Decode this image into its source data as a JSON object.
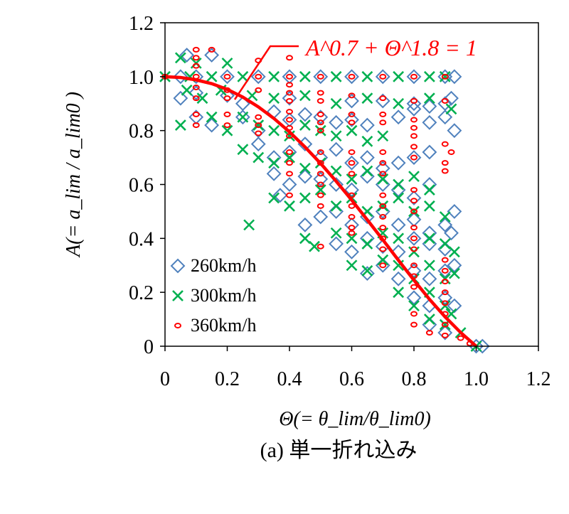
{
  "chart_data": {
    "type": "scatter",
    "title": "",
    "caption": "(a) 単一折れ込み",
    "xlabel": "Θ(= θ_lim/θ_lim0)",
    "ylabel": "A(= a_lim / a_lim0 )",
    "xlim": [
      0,
      1.2
    ],
    "ylim": [
      0,
      1.2
    ],
    "xticks": [
      "0",
      "0.2",
      "0.4",
      "0.6",
      "0.8",
      "1.0",
      "1.2"
    ],
    "yticks": [
      "0",
      "0.2",
      "0.4",
      "0.6",
      "0.8",
      "1.0",
      "1.2"
    ],
    "grid": false,
    "legend_position": "bottom-left",
    "annotation": {
      "text": "A^0.7 + Θ^1.8 = 1",
      "color": "#ff0000"
    },
    "curve": {
      "name": "A^0.7 + Θ^1.8 = 1",
      "color": "#ff0000",
      "x": [
        0,
        0.05,
        0.1,
        0.15,
        0.2,
        0.25,
        0.3,
        0.35,
        0.4,
        0.45,
        0.5,
        0.55,
        0.6,
        0.65,
        0.7,
        0.75,
        0.8,
        0.85,
        0.9,
        0.95,
        1.0
      ],
      "y": [
        1.0,
        0.997,
        0.988,
        0.974,
        0.953,
        0.924,
        0.888,
        0.845,
        0.795,
        0.739,
        0.678,
        0.612,
        0.542,
        0.469,
        0.395,
        0.319,
        0.245,
        0.174,
        0.109,
        0.051,
        0.0
      ]
    },
    "series": [
      {
        "name": "260km/h",
        "marker": "diamond",
        "color": "#4f81bd",
        "points": [
          [
            0.07,
            1.08
          ],
          [
            0.15,
            1.08
          ],
          [
            0.05,
            1.0
          ],
          [
            0.1,
            1.0
          ],
          [
            0.2,
            1.0
          ],
          [
            0.3,
            1.0
          ],
          [
            0.4,
            1.0
          ],
          [
            0.5,
            1.0
          ],
          [
            0.6,
            1.0
          ],
          [
            0.7,
            1.0
          ],
          [
            0.8,
            1.0
          ],
          [
            0.9,
            1.0
          ],
          [
            0.93,
            1.0
          ],
          [
            0.05,
            0.92
          ],
          [
            0.1,
            0.94
          ],
          [
            0.2,
            0.93
          ],
          [
            0.25,
            0.9
          ],
          [
            0.4,
            0.92
          ],
          [
            0.6,
            0.91
          ],
          [
            0.7,
            0.91
          ],
          [
            0.8,
            0.9
          ],
          [
            0.85,
            0.89
          ],
          [
            0.9,
            0.9
          ],
          [
            0.92,
            0.92
          ],
          [
            0.1,
            0.85
          ],
          [
            0.15,
            0.82
          ],
          [
            0.25,
            0.85
          ],
          [
            0.3,
            0.8
          ],
          [
            0.35,
            0.87
          ],
          [
            0.4,
            0.84
          ],
          [
            0.45,
            0.86
          ],
          [
            0.5,
            0.85
          ],
          [
            0.55,
            0.83
          ],
          [
            0.6,
            0.84
          ],
          [
            0.65,
            0.82
          ],
          [
            0.75,
            0.85
          ],
          [
            0.8,
            0.88
          ],
          [
            0.85,
            0.83
          ],
          [
            0.9,
            0.85
          ],
          [
            0.93,
            0.8
          ],
          [
            0.3,
            0.75
          ],
          [
            0.35,
            0.7
          ],
          [
            0.4,
            0.72
          ],
          [
            0.45,
            0.75
          ],
          [
            0.5,
            0.7
          ],
          [
            0.55,
            0.73
          ],
          [
            0.6,
            0.68
          ],
          [
            0.65,
            0.7
          ],
          [
            0.7,
            0.66
          ],
          [
            0.75,
            0.68
          ],
          [
            0.8,
            0.7
          ],
          [
            0.85,
            0.72
          ],
          [
            0.35,
            0.64
          ],
          [
            0.4,
            0.6
          ],
          [
            0.45,
            0.63
          ],
          [
            0.5,
            0.62
          ],
          [
            0.55,
            0.6
          ],
          [
            0.6,
            0.58
          ],
          [
            0.65,
            0.63
          ],
          [
            0.7,
            0.6
          ],
          [
            0.75,
            0.58
          ],
          [
            0.8,
            0.55
          ],
          [
            0.85,
            0.6
          ],
          [
            0.37,
            0.56
          ],
          [
            0.45,
            0.45
          ],
          [
            0.5,
            0.48
          ],
          [
            0.55,
            0.5
          ],
          [
            0.6,
            0.45
          ],
          [
            0.65,
            0.48
          ],
          [
            0.7,
            0.5
          ],
          [
            0.75,
            0.45
          ],
          [
            0.8,
            0.47
          ],
          [
            0.85,
            0.42
          ],
          [
            0.9,
            0.45
          ],
          [
            0.55,
            0.38
          ],
          [
            0.6,
            0.35
          ],
          [
            0.65,
            0.4
          ],
          [
            0.7,
            0.37
          ],
          [
            0.75,
            0.35
          ],
          [
            0.8,
            0.4
          ],
          [
            0.85,
            0.38
          ],
          [
            0.9,
            0.36
          ],
          [
            0.92,
            0.42
          ],
          [
            0.93,
            0.5
          ],
          [
            0.65,
            0.27
          ],
          [
            0.7,
            0.3
          ],
          [
            0.75,
            0.25
          ],
          [
            0.8,
            0.28
          ],
          [
            0.85,
            0.25
          ],
          [
            0.9,
            0.28
          ],
          [
            0.93,
            0.3
          ],
          [
            0.8,
            0.18
          ],
          [
            0.85,
            0.15
          ],
          [
            0.9,
            0.18
          ],
          [
            0.93,
            0.15
          ],
          [
            0.85,
            0.08
          ],
          [
            0.9,
            0.05
          ],
          [
            1.0,
            0.0
          ],
          [
            1.02,
            0.0
          ]
        ]
      },
      {
        "name": "300km/h",
        "marker": "x",
        "color": "#00b050",
        "points": [
          [
            0.05,
            1.07
          ],
          [
            0.1,
            1.05
          ],
          [
            0.2,
            1.05
          ],
          [
            0.0,
            1.0
          ],
          [
            0.08,
            1.0
          ],
          [
            0.15,
            1.0
          ],
          [
            0.25,
            1.0
          ],
          [
            0.35,
            1.0
          ],
          [
            0.45,
            1.0
          ],
          [
            0.55,
            1.0
          ],
          [
            0.65,
            1.0
          ],
          [
            0.75,
            1.0
          ],
          [
            0.85,
            1.0
          ],
          [
            0.9,
            1.0
          ],
          [
            0.07,
            0.95
          ],
          [
            0.12,
            0.92
          ],
          [
            0.18,
            0.95
          ],
          [
            0.28,
            0.93
          ],
          [
            0.35,
            0.92
          ],
          [
            0.45,
            0.93
          ],
          [
            0.55,
            0.9
          ],
          [
            0.65,
            0.92
          ],
          [
            0.75,
            0.9
          ],
          [
            0.85,
            0.92
          ],
          [
            0.92,
            0.88
          ],
          [
            0.05,
            0.82
          ],
          [
            0.15,
            0.85
          ],
          [
            0.2,
            0.8
          ],
          [
            0.25,
            0.85
          ],
          [
            0.3,
            0.82
          ],
          [
            0.35,
            0.8
          ],
          [
            0.4,
            0.78
          ],
          [
            0.45,
            0.82
          ],
          [
            0.5,
            0.8
          ],
          [
            0.55,
            0.78
          ],
          [
            0.6,
            0.8
          ],
          [
            0.65,
            0.76
          ],
          [
            0.7,
            0.78
          ],
          [
            0.25,
            0.73
          ],
          [
            0.3,
            0.7
          ],
          [
            0.35,
            0.68
          ],
          [
            0.4,
            0.7
          ],
          [
            0.45,
            0.66
          ],
          [
            0.5,
            0.68
          ],
          [
            0.55,
            0.65
          ],
          [
            0.6,
            0.62
          ],
          [
            0.65,
            0.65
          ],
          [
            0.7,
            0.62
          ],
          [
            0.75,
            0.6
          ],
          [
            0.8,
            0.63
          ],
          [
            0.85,
            0.58
          ],
          [
            0.35,
            0.55
          ],
          [
            0.4,
            0.52
          ],
          [
            0.45,
            0.55
          ],
          [
            0.5,
            0.58
          ],
          [
            0.55,
            0.52
          ],
          [
            0.6,
            0.55
          ],
          [
            0.65,
            0.5
          ],
          [
            0.7,
            0.52
          ],
          [
            0.75,
            0.55
          ],
          [
            0.8,
            0.5
          ],
          [
            0.85,
            0.52
          ],
          [
            0.9,
            0.48
          ],
          [
            0.27,
            0.45
          ],
          [
            0.45,
            0.4
          ],
          [
            0.48,
            0.37
          ],
          [
            0.55,
            0.42
          ],
          [
            0.6,
            0.4
          ],
          [
            0.65,
            0.38
          ],
          [
            0.7,
            0.42
          ],
          [
            0.75,
            0.4
          ],
          [
            0.8,
            0.35
          ],
          [
            0.85,
            0.4
          ],
          [
            0.9,
            0.38
          ],
          [
            0.93,
            0.35
          ],
          [
            0.6,
            0.3
          ],
          [
            0.65,
            0.28
          ],
          [
            0.7,
            0.32
          ],
          [
            0.75,
            0.3
          ],
          [
            0.8,
            0.25
          ],
          [
            0.85,
            0.3
          ],
          [
            0.9,
            0.25
          ],
          [
            0.93,
            0.27
          ],
          [
            0.75,
            0.2
          ],
          [
            0.8,
            0.15
          ],
          [
            0.85,
            0.2
          ],
          [
            0.9,
            0.15
          ],
          [
            0.92,
            0.12
          ],
          [
            0.85,
            0.1
          ],
          [
            0.9,
            0.08
          ],
          [
            0.95,
            0.05
          ],
          [
            1.0,
            0.0
          ]
        ]
      },
      {
        "name": "360km/h",
        "marker": "circle",
        "color": "#ff0000",
        "points": [
          [
            0.1,
            1.1
          ],
          [
            0.15,
            1.1
          ],
          [
            0.3,
            1.06
          ],
          [
            0.4,
            1.07
          ],
          [
            0.1,
            1.07
          ],
          [
            0.1,
            1.04
          ],
          [
            0.0,
            1.0
          ],
          [
            0.1,
            1.0
          ],
          [
            0.2,
            1.0
          ],
          [
            0.3,
            1.0
          ],
          [
            0.4,
            1.0
          ],
          [
            0.5,
            1.0
          ],
          [
            0.6,
            1.0
          ],
          [
            0.7,
            1.0
          ],
          [
            0.8,
            1.0
          ],
          [
            0.9,
            1.0
          ],
          [
            0.1,
            0.96
          ],
          [
            0.1,
            0.92
          ],
          [
            0.2,
            0.95
          ],
          [
            0.2,
            0.92
          ],
          [
            0.3,
            0.95
          ],
          [
            0.4,
            0.97
          ],
          [
            0.4,
            0.94
          ],
          [
            0.4,
            0.91
          ],
          [
            0.5,
            0.94
          ],
          [
            0.5,
            0.91
          ],
          [
            0.6,
            0.93
          ],
          [
            0.7,
            0.92
          ],
          [
            0.8,
            0.91
          ],
          [
            0.9,
            0.91
          ],
          [
            0.1,
            0.86
          ],
          [
            0.1,
            0.82
          ],
          [
            0.2,
            0.86
          ],
          [
            0.2,
            0.82
          ],
          [
            0.3,
            0.85
          ],
          [
            0.3,
            0.82
          ],
          [
            0.3,
            0.79
          ],
          [
            0.4,
            0.87
          ],
          [
            0.4,
            0.84
          ],
          [
            0.4,
            0.81
          ],
          [
            0.4,
            0.78
          ],
          [
            0.5,
            0.86
          ],
          [
            0.5,
            0.83
          ],
          [
            0.5,
            0.8
          ],
          [
            0.6,
            0.86
          ],
          [
            0.6,
            0.83
          ],
          [
            0.7,
            0.86
          ],
          [
            0.7,
            0.83
          ],
          [
            0.8,
            0.84
          ],
          [
            0.8,
            0.81
          ],
          [
            0.8,
            0.78
          ],
          [
            0.4,
            0.72
          ],
          [
            0.4,
            0.68
          ],
          [
            0.4,
            0.64
          ],
          [
            0.5,
            0.72
          ],
          [
            0.5,
            0.68
          ],
          [
            0.5,
            0.64
          ],
          [
            0.5,
            0.6
          ],
          [
            0.6,
            0.72
          ],
          [
            0.6,
            0.68
          ],
          [
            0.6,
            0.64
          ],
          [
            0.7,
            0.72
          ],
          [
            0.7,
            0.68
          ],
          [
            0.7,
            0.64
          ],
          [
            0.8,
            0.74
          ],
          [
            0.8,
            0.7
          ],
          [
            0.9,
            0.75
          ],
          [
            0.9,
            0.68
          ],
          [
            0.9,
            0.65
          ],
          [
            0.92,
            0.72
          ],
          [
            0.4,
            0.56
          ],
          [
            0.5,
            0.56
          ],
          [
            0.5,
            0.52
          ],
          [
            0.6,
            0.56
          ],
          [
            0.6,
            0.52
          ],
          [
            0.6,
            0.48
          ],
          [
            0.6,
            0.44
          ],
          [
            0.7,
            0.56
          ],
          [
            0.7,
            0.52
          ],
          [
            0.7,
            0.48
          ],
          [
            0.8,
            0.58
          ],
          [
            0.8,
            0.54
          ],
          [
            0.8,
            0.5
          ],
          [
            0.5,
            0.37
          ],
          [
            0.6,
            0.42
          ],
          [
            0.7,
            0.44
          ],
          [
            0.7,
            0.4
          ],
          [
            0.7,
            0.36
          ],
          [
            0.8,
            0.44
          ],
          [
            0.8,
            0.4
          ],
          [
            0.8,
            0.36
          ],
          [
            0.9,
            0.32
          ],
          [
            0.9,
            0.28
          ],
          [
            0.7,
            0.3
          ],
          [
            0.8,
            0.3
          ],
          [
            0.8,
            0.26
          ],
          [
            0.8,
            0.22
          ],
          [
            0.9,
            0.24
          ],
          [
            0.9,
            0.2
          ],
          [
            0.9,
            0.16
          ],
          [
            0.9,
            0.12
          ],
          [
            0.8,
            0.12
          ],
          [
            0.8,
            0.08
          ],
          [
            0.85,
            0.05
          ],
          [
            0.9,
            0.08
          ],
          [
            0.9,
            0.04
          ],
          [
            0.95,
            0.03
          ],
          [
            0.98,
            0.01
          ]
        ]
      }
    ]
  }
}
